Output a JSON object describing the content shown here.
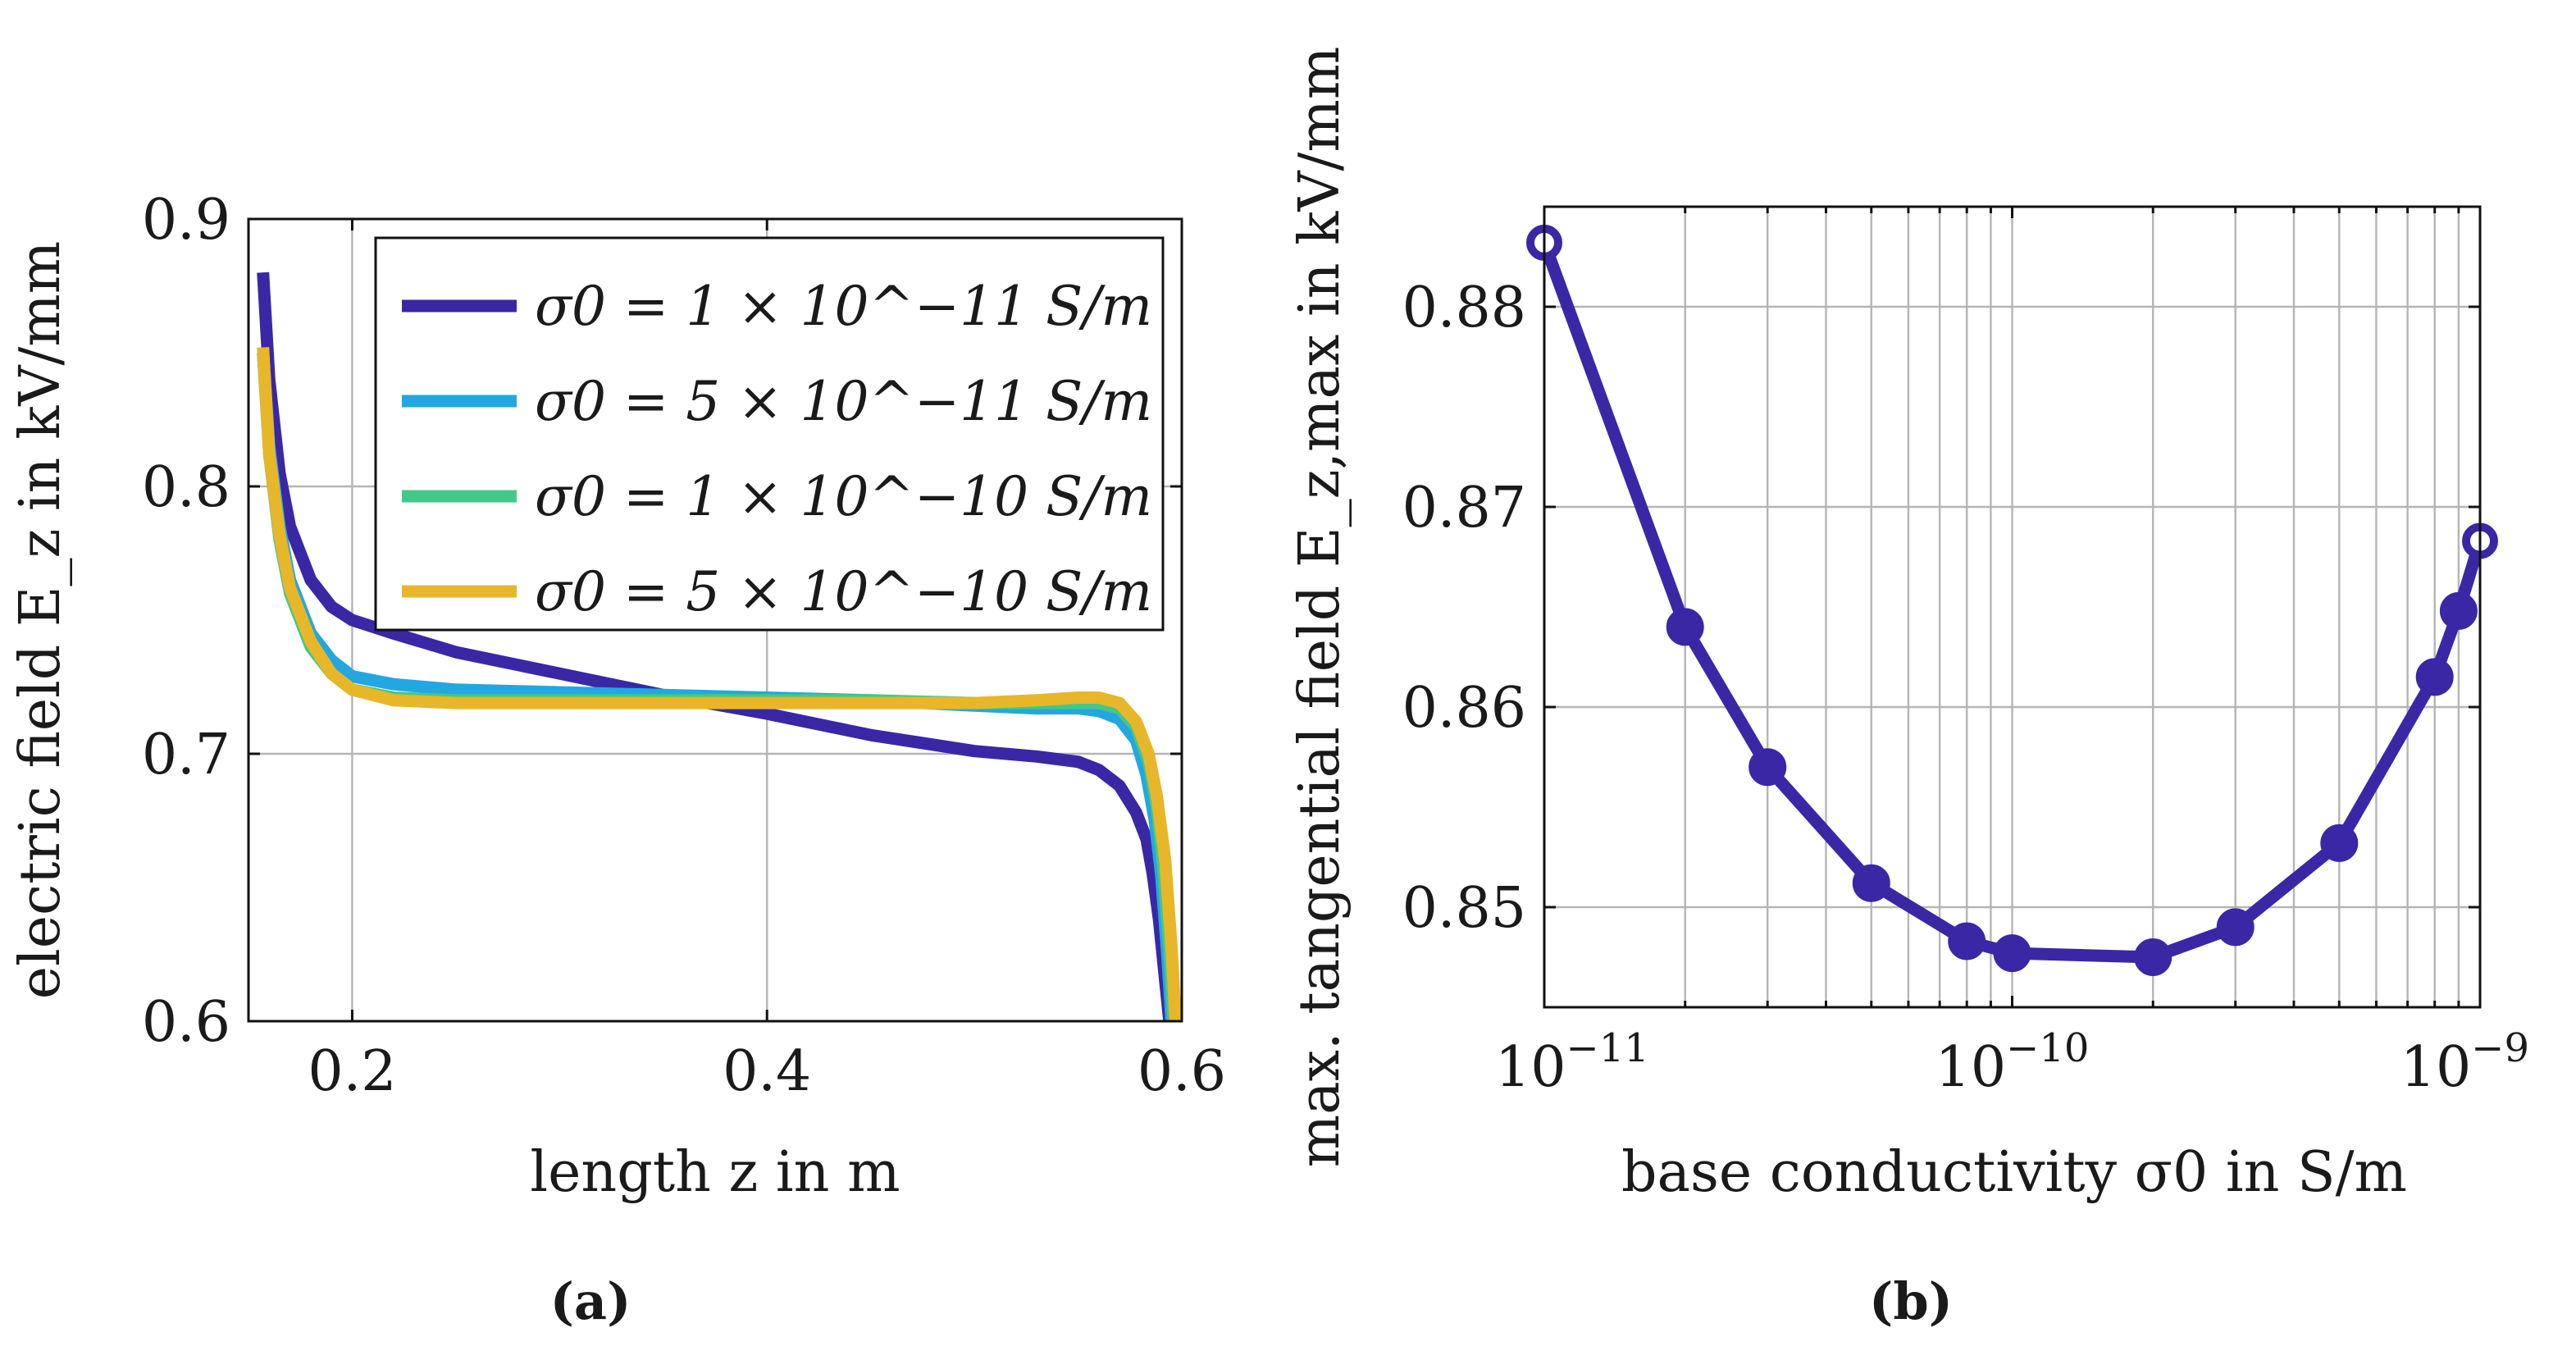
{
  "chart_data": [
    {
      "type": "line",
      "caption": "(a)",
      "xlabel": "length z in m",
      "ylabel": "electric field E_z in kV/mm",
      "xlim": [
        0.15,
        0.6
      ],
      "ylim": [
        0.6,
        0.9
      ],
      "xticks": [
        0.2,
        0.4,
        0.6
      ],
      "yticks": [
        0.6,
        0.7,
        0.8,
        0.9
      ],
      "xtick_labels": [
        "0.2",
        "0.4",
        "0.6"
      ],
      "ytick_labels": [
        "0.6",
        "0.7",
        "0.8",
        "0.9"
      ],
      "grid": true,
      "legend_position": "top-right",
      "series": [
        {
          "name": "σ0 = 1 × 10^−11 S/m",
          "color": "#3a27a6",
          "x": [
            0.157,
            0.16,
            0.165,
            0.17,
            0.18,
            0.19,
            0.2,
            0.22,
            0.25,
            0.3,
            0.35,
            0.4,
            0.45,
            0.5,
            0.53,
            0.55,
            0.56,
            0.57,
            0.578,
            0.583,
            0.586,
            0.589,
            0.592,
            0.594
          ],
          "y": [
            0.88,
            0.84,
            0.805,
            0.785,
            0.765,
            0.755,
            0.75,
            0.745,
            0.738,
            0.73,
            0.722,
            0.715,
            0.707,
            0.701,
            0.699,
            0.697,
            0.694,
            0.688,
            0.678,
            0.668,
            0.655,
            0.638,
            0.615,
            0.6
          ]
        },
        {
          "name": "σ0 = 5 × 10^−11 S/m",
          "color": "#22a7e0",
          "x": [
            0.157,
            0.16,
            0.165,
            0.17,
            0.18,
            0.19,
            0.2,
            0.22,
            0.25,
            0.3,
            0.35,
            0.4,
            0.45,
            0.5,
            0.53,
            0.55,
            0.56,
            0.57,
            0.578,
            0.583,
            0.587,
            0.59,
            0.593,
            0.595
          ],
          "y": [
            0.85,
            0.815,
            0.785,
            0.765,
            0.745,
            0.735,
            0.729,
            0.726,
            0.724,
            0.723,
            0.722,
            0.721,
            0.72,
            0.718,
            0.717,
            0.717,
            0.716,
            0.713,
            0.705,
            0.692,
            0.675,
            0.655,
            0.625,
            0.6
          ]
        },
        {
          "name": "σ0 = 1 × 10^−10 S/m",
          "color": "#43c88a",
          "x": [
            0.157,
            0.16,
            0.165,
            0.17,
            0.18,
            0.19,
            0.2,
            0.22,
            0.25,
            0.3,
            0.35,
            0.4,
            0.45,
            0.5,
            0.53,
            0.55,
            0.56,
            0.57,
            0.578,
            0.584,
            0.588,
            0.591,
            0.594,
            0.596
          ],
          "y": [
            0.85,
            0.812,
            0.78,
            0.76,
            0.74,
            0.73,
            0.724,
            0.721,
            0.72,
            0.72,
            0.72,
            0.72,
            0.72,
            0.719,
            0.719,
            0.719,
            0.719,
            0.717,
            0.71,
            0.697,
            0.68,
            0.658,
            0.627,
            0.6
          ]
        },
        {
          "name": "σ0 = 5 × 10^−10 S/m",
          "color": "#e8b629",
          "x": [
            0.157,
            0.16,
            0.165,
            0.17,
            0.18,
            0.19,
            0.2,
            0.22,
            0.25,
            0.3,
            0.35,
            0.4,
            0.45,
            0.5,
            0.53,
            0.55,
            0.56,
            0.57,
            0.578,
            0.584,
            0.588,
            0.592,
            0.595,
            0.597
          ],
          "y": [
            0.852,
            0.812,
            0.782,
            0.762,
            0.742,
            0.73,
            0.724,
            0.72,
            0.719,
            0.719,
            0.719,
            0.719,
            0.719,
            0.719,
            0.72,
            0.721,
            0.721,
            0.719,
            0.712,
            0.7,
            0.684,
            0.66,
            0.628,
            0.6
          ]
        }
      ]
    },
    {
      "type": "line",
      "caption": "(b)",
      "xlabel": "base conductivity σ0 in S/m",
      "ylabel": "max. tangential field E_z,max in kV/mm",
      "xscale": "log",
      "xlim": [
        1e-11,
        1e-09
      ],
      "ylim": [
        0.845,
        0.885
      ],
      "xticks": [
        1e-11,
        1e-10,
        1e-09
      ],
      "yticks": [
        0.85,
        0.86,
        0.87,
        0.88
      ],
      "xtick_labels": [
        "10^−11",
        "10^−10",
        "10^−9"
      ],
      "ytick_labels": [
        "0.85",
        "0.86",
        "0.87",
        "0.88"
      ],
      "grid": true,
      "series": [
        {
          "color": "#3a27a6",
          "x": [
            1e-11,
            2e-11,
            3e-11,
            5e-11,
            8e-11,
            1e-10,
            2e-10,
            3e-10,
            5e-10,
            8e-10,
            9e-10,
            1e-09
          ],
          "y": [
            0.8832,
            0.864,
            0.857,
            0.8512,
            0.8483,
            0.8477,
            0.8475,
            0.849,
            0.8532,
            0.8615,
            0.8648,
            0.8683
          ],
          "markers": [
            "open",
            "filled",
            "filled",
            "filled",
            "filled",
            "filled",
            "filled",
            "filled",
            "filled",
            "filled",
            "filled",
            "open"
          ]
        }
      ]
    }
  ]
}
